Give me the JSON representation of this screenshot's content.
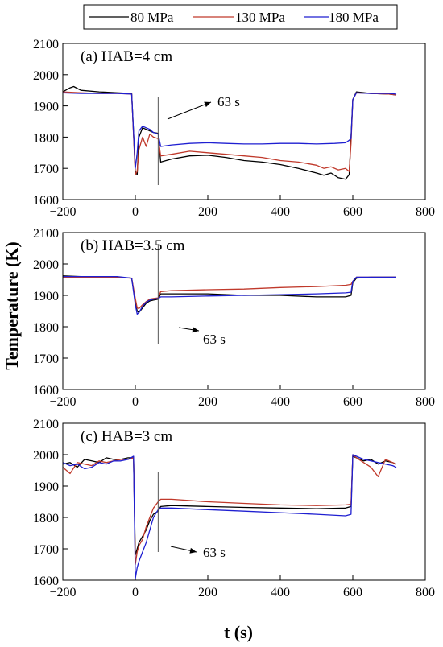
{
  "legend": [
    {
      "name": "80 MPa",
      "color": "#000000"
    },
    {
      "name": "130 MPa",
      "color": "#c0392b"
    },
    {
      "name": "180 MPa",
      "color": "#1f1fd1"
    }
  ],
  "shared_ylabel": "Temperature (K)",
  "shared_xlabel": "t (s)",
  "chart_data": [
    {
      "type": "line",
      "title": "(a) HAB=4 cm",
      "annotation": "63 s",
      "marker_x": 63,
      "xlim": [
        -200,
        800
      ],
      "ylim": [
        1600,
        2100
      ],
      "xticks": [
        -200,
        0,
        200,
        400,
        600,
        800
      ],
      "yticks": [
        1600,
        1700,
        1800,
        1900,
        2000,
        2100
      ],
      "series": [
        {
          "name": "80 MPa",
          "color": "#000000",
          "x": [
            -200,
            -180,
            -170,
            -150,
            -100,
            -50,
            -10,
            0,
            5,
            10,
            20,
            30,
            40,
            50,
            63,
            70,
            100,
            150,
            200,
            250,
            300,
            350,
            400,
            450,
            500,
            520,
            540,
            560,
            580,
            590,
            595,
            600,
            610,
            650,
            700,
            720
          ],
          "y": [
            1945,
            1958,
            1962,
            1950,
            1945,
            1942,
            1940,
            1690,
            1680,
            1800,
            1830,
            1825,
            1820,
            1815,
            1812,
            1720,
            1730,
            1740,
            1742,
            1735,
            1725,
            1720,
            1712,
            1700,
            1685,
            1678,
            1685,
            1670,
            1665,
            1680,
            1800,
            1920,
            1945,
            1940,
            1938,
            1935
          ]
        },
        {
          "name": "130 MPa",
          "color": "#c0392b",
          "x": [
            -200,
            -150,
            -100,
            -50,
            -10,
            0,
            5,
            10,
            20,
            30,
            40,
            50,
            63,
            70,
            100,
            150,
            200,
            250,
            300,
            350,
            400,
            450,
            500,
            520,
            540,
            560,
            580,
            590,
            595,
            600,
            610,
            650,
            700,
            720
          ],
          "y": [
            1945,
            1942,
            1940,
            1940,
            1938,
            1680,
            1690,
            1760,
            1800,
            1770,
            1810,
            1800,
            1795,
            1740,
            1745,
            1755,
            1750,
            1745,
            1740,
            1735,
            1725,
            1720,
            1710,
            1700,
            1705,
            1695,
            1700,
            1690,
            1780,
            1920,
            1942,
            1940,
            1938,
            1935
          ]
        },
        {
          "name": "180 MPa",
          "color": "#1f1fd1",
          "x": [
            -200,
            -150,
            -100,
            -50,
            -10,
            0,
            5,
            10,
            20,
            30,
            40,
            50,
            63,
            70,
            100,
            150,
            200,
            250,
            300,
            350,
            400,
            450,
            500,
            550,
            580,
            590,
            595,
            600,
            610,
            650,
            700,
            720
          ],
          "y": [
            1942,
            1940,
            1940,
            1940,
            1938,
            1700,
            1750,
            1820,
            1835,
            1830,
            1825,
            1815,
            1810,
            1770,
            1775,
            1780,
            1782,
            1780,
            1778,
            1778,
            1780,
            1780,
            1778,
            1780,
            1782,
            1790,
            1795,
            1920,
            1942,
            1940,
            1940,
            1938
          ]
        }
      ]
    },
    {
      "type": "line",
      "title": "(b) HAB=3.5 cm",
      "annotation": "63 s",
      "marker_x": 63,
      "xlim": [
        -200,
        800
      ],
      "ylim": [
        1600,
        2100
      ],
      "xticks": [
        -200,
        0,
        200,
        400,
        600,
        800
      ],
      "yticks": [
        1600,
        1700,
        1800,
        1900,
        2000,
        2100
      ],
      "series": [
        {
          "name": "80 MPa",
          "color": "#000000",
          "x": [
            -200,
            -150,
            -100,
            -50,
            -10,
            0,
            5,
            10,
            20,
            30,
            40,
            50,
            63,
            70,
            100,
            200,
            300,
            400,
            500,
            580,
            595,
            600,
            610,
            650,
            700,
            720
          ],
          "y": [
            1962,
            1960,
            1958,
            1958,
            1955,
            1880,
            1850,
            1845,
            1860,
            1875,
            1882,
            1885,
            1888,
            1905,
            1905,
            1905,
            1900,
            1900,
            1895,
            1895,
            1900,
            1940,
            1955,
            1958,
            1958,
            1958
          ]
        },
        {
          "name": "130 MPa",
          "color": "#c0392b",
          "x": [
            -200,
            -150,
            -100,
            -50,
            -10,
            0,
            5,
            10,
            20,
            30,
            40,
            50,
            63,
            70,
            100,
            200,
            300,
            400,
            500,
            580,
            595,
            600,
            610,
            650,
            700,
            720
          ],
          "y": [
            1958,
            1958,
            1958,
            1957,
            1955,
            1890,
            1860,
            1858,
            1870,
            1880,
            1888,
            1890,
            1892,
            1912,
            1915,
            1918,
            1920,
            1925,
            1928,
            1932,
            1935,
            1945,
            1958,
            1958,
            1958,
            1958
          ]
        },
        {
          "name": "180 MPa",
          "color": "#1f1fd1",
          "x": [
            -200,
            -150,
            -100,
            -50,
            -10,
            0,
            5,
            10,
            20,
            30,
            40,
            50,
            63,
            70,
            100,
            200,
            300,
            400,
            500,
            580,
            595,
            600,
            610,
            650,
            700,
            720
          ],
          "y": [
            1960,
            1960,
            1960,
            1960,
            1955,
            1870,
            1840,
            1845,
            1865,
            1878,
            1885,
            1888,
            1890,
            1895,
            1895,
            1898,
            1900,
            1902,
            1905,
            1908,
            1910,
            1945,
            1958,
            1958,
            1958,
            1958
          ]
        }
      ]
    },
    {
      "type": "line",
      "title": "(c) HAB=3 cm",
      "annotation": "63 s",
      "marker_x": 63,
      "xlim": [
        -200,
        800
      ],
      "ylim": [
        1600,
        2100
      ],
      "xticks": [
        -200,
        0,
        200,
        400,
        600,
        800
      ],
      "yticks": [
        1600,
        1700,
        1800,
        1900,
        2000,
        2100
      ],
      "series": [
        {
          "name": "80 MPa",
          "color": "#000000",
          "x": [
            -200,
            -180,
            -160,
            -140,
            -120,
            -100,
            -80,
            -60,
            -40,
            -20,
            -5,
            0,
            5,
            10,
            20,
            30,
            40,
            50,
            63,
            70,
            100,
            200,
            300,
            400,
            500,
            580,
            595,
            600,
            610,
            630,
            650,
            670,
            690,
            710,
            720
          ],
          "y": [
            1970,
            1975,
            1960,
            1985,
            1980,
            1975,
            1990,
            1985,
            1985,
            1990,
            1990,
            1680,
            1700,
            1720,
            1740,
            1760,
            1790,
            1810,
            1820,
            1835,
            1838,
            1835,
            1832,
            1830,
            1828,
            1830,
            1835,
            1995,
            1990,
            1980,
            1985,
            1970,
            1980,
            1975,
            1970
          ]
        },
        {
          "name": "130 MPa",
          "color": "#c0392b",
          "x": [
            -200,
            -180,
            -160,
            -140,
            -120,
            -100,
            -80,
            -60,
            -40,
            -20,
            -5,
            0,
            5,
            10,
            20,
            30,
            40,
            50,
            63,
            70,
            100,
            200,
            300,
            400,
            500,
            580,
            595,
            600,
            610,
            630,
            650,
            670,
            690,
            710,
            720
          ],
          "y": [
            1960,
            1940,
            1975,
            1970,
            1965,
            1980,
            1975,
            1980,
            1985,
            1985,
            1990,
            1650,
            1690,
            1710,
            1730,
            1770,
            1800,
            1830,
            1850,
            1858,
            1858,
            1850,
            1845,
            1840,
            1838,
            1840,
            1842,
            2000,
            1990,
            1975,
            1960,
            1930,
            1985,
            1975,
            1970
          ]
        },
        {
          "name": "180 MPa",
          "color": "#1f1fd1",
          "x": [
            -200,
            -180,
            -160,
            -140,
            -120,
            -100,
            -80,
            -60,
            -40,
            -20,
            -5,
            0,
            5,
            10,
            20,
            30,
            40,
            50,
            63,
            70,
            100,
            200,
            300,
            400,
            500,
            580,
            595,
            600,
            610,
            630,
            650,
            670,
            690,
            710,
            720
          ],
          "y": [
            1975,
            1965,
            1970,
            1955,
            1960,
            1975,
            1970,
            1980,
            1980,
            1985,
            1995,
            1605,
            1640,
            1660,
            1690,
            1720,
            1760,
            1800,
            1825,
            1830,
            1830,
            1825,
            1820,
            1815,
            1810,
            1805,
            1810,
            2000,
            1995,
            1985,
            1980,
            1975,
            1970,
            1965,
            1960
          ]
        }
      ]
    }
  ]
}
